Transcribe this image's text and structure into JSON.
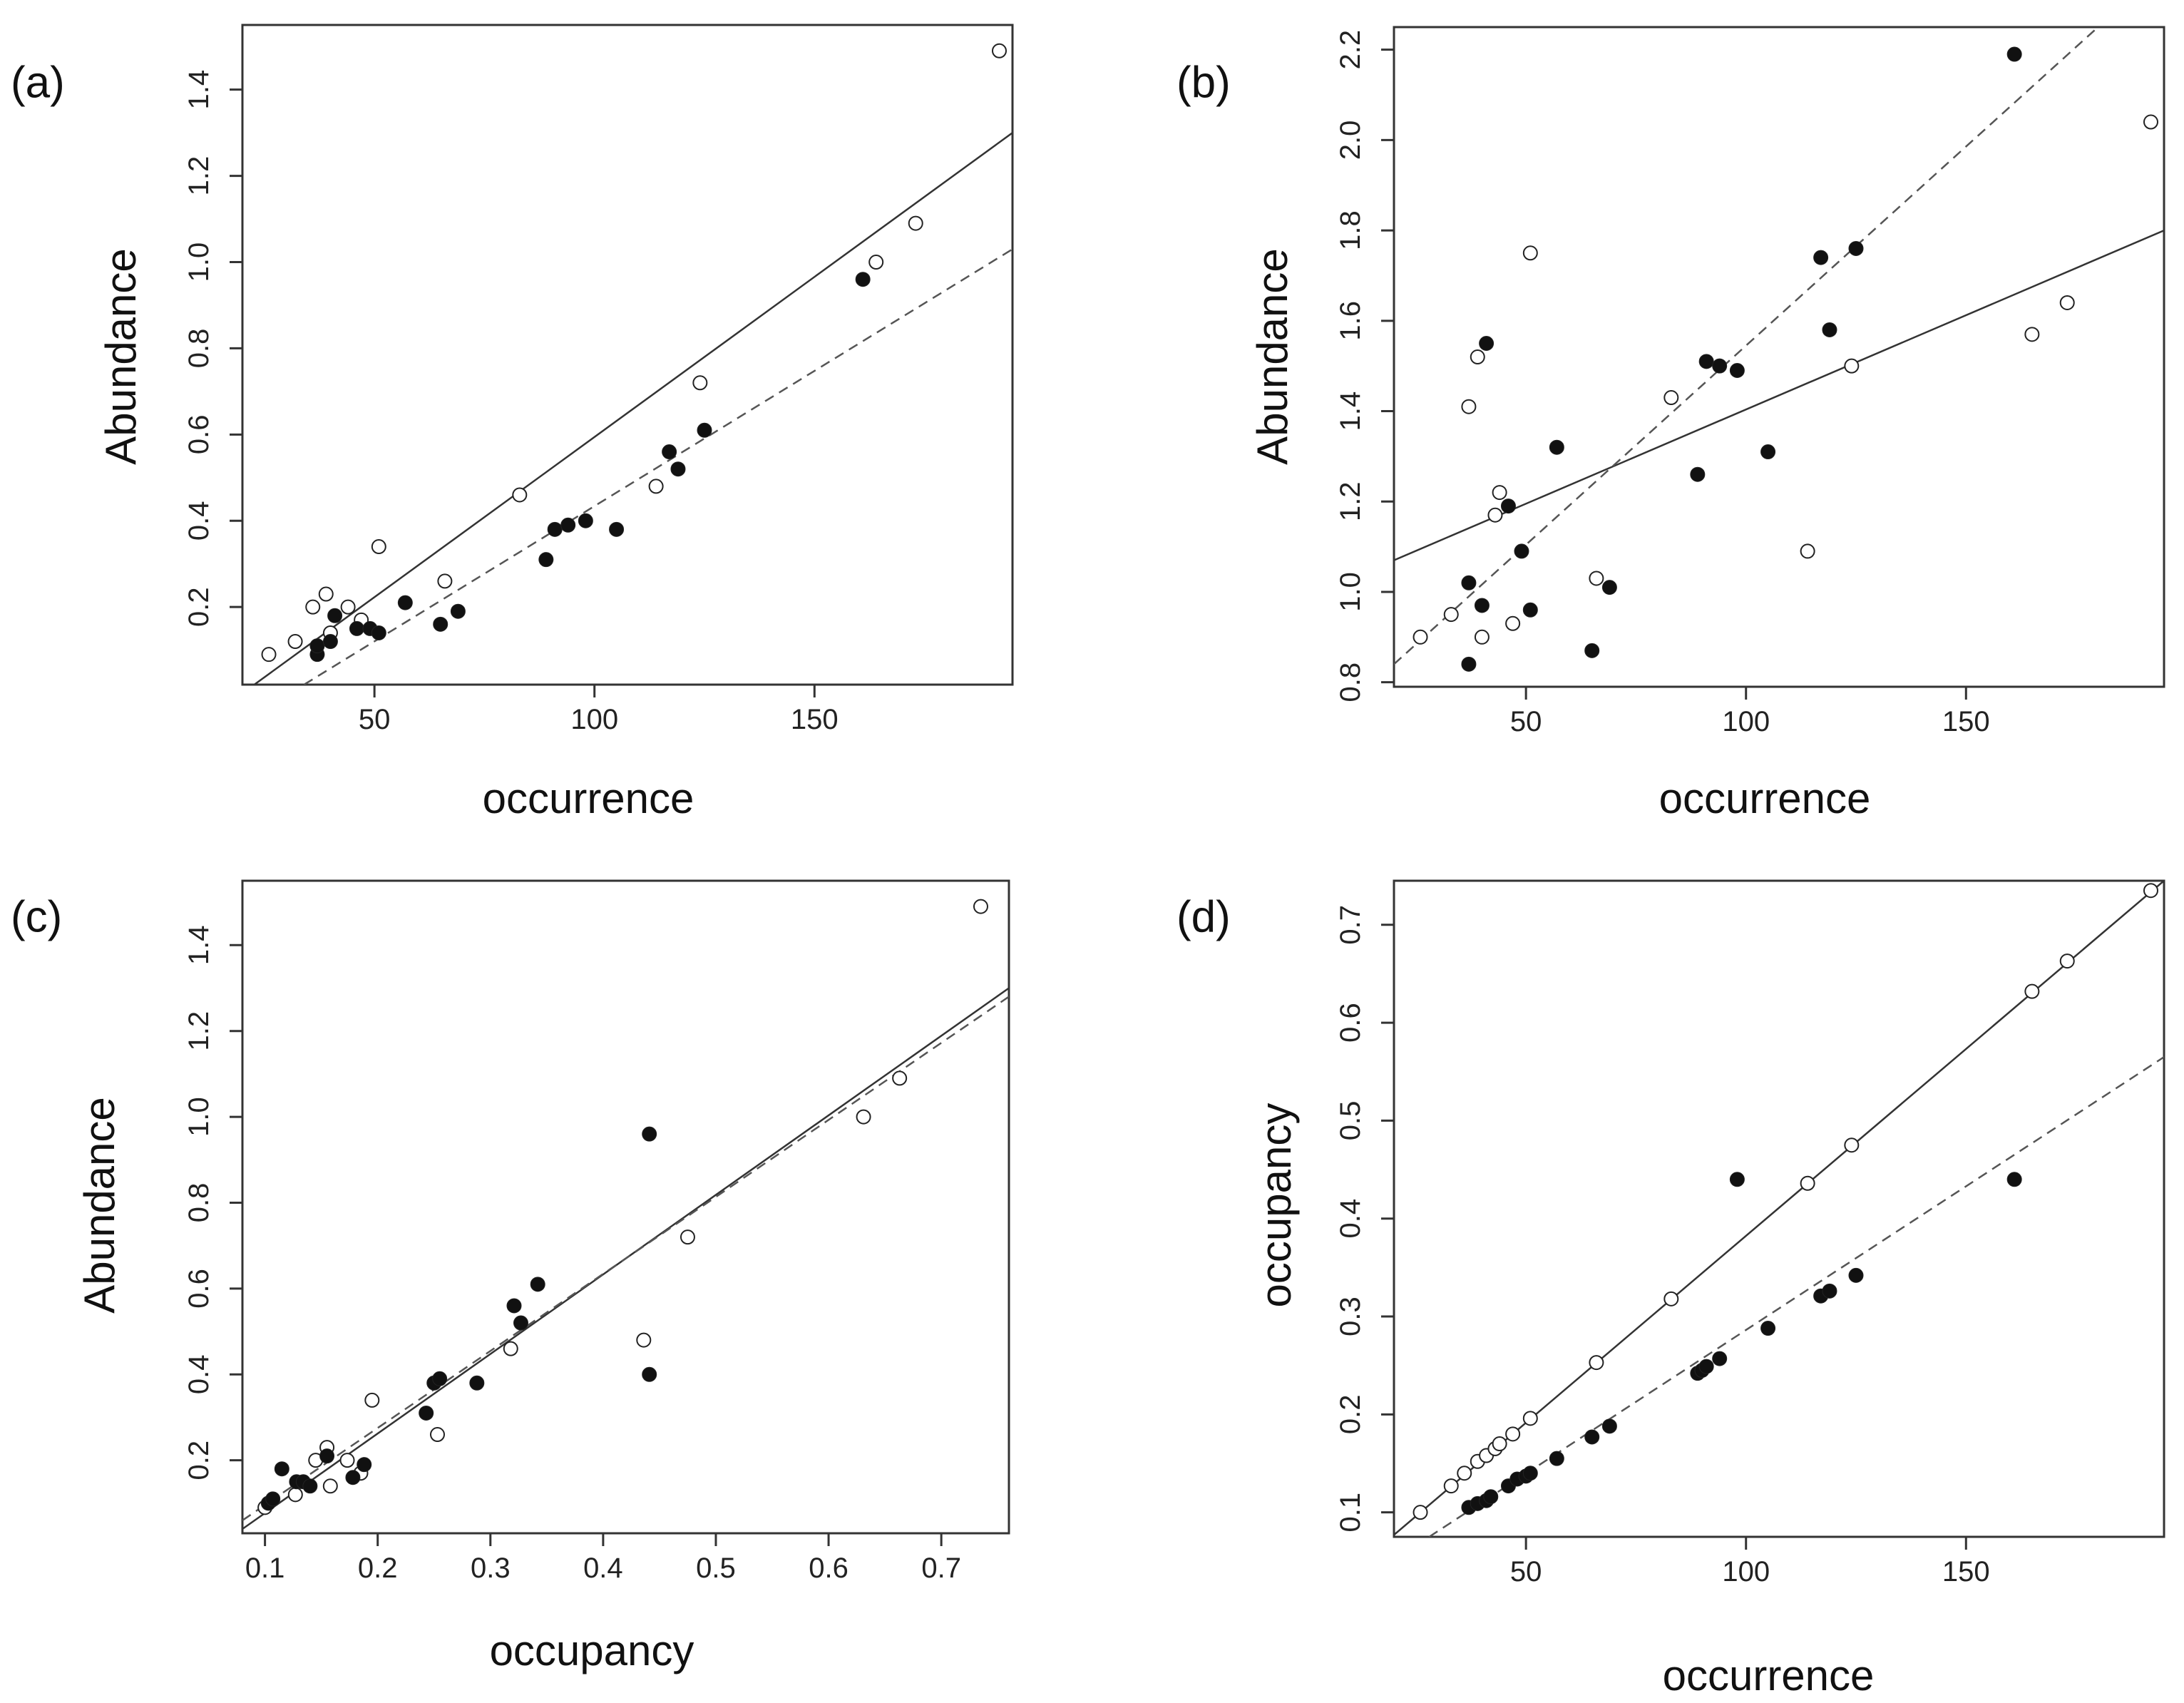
{
  "chart_data": [
    {
      "panel": "(a)",
      "type": "scatter",
      "xlabel": "occurrence",
      "ylabel": "Abundance",
      "xlim": [
        20,
        195
      ],
      "ylim": [
        0.02,
        1.55
      ],
      "xticks": [
        50,
        100,
        150
      ],
      "yticks": [
        0.2,
        0.4,
        0.6,
        0.8,
        1.0,
        1.2,
        1.4
      ],
      "xtick_labels": [
        "50",
        "100",
        "150"
      ],
      "ytick_labels": [
        "0.2",
        "0.4",
        "0.6",
        "0.8",
        "1.0",
        "1.2",
        "1.4"
      ],
      "series": [
        {
          "name": "open",
          "marker": "open-circle",
          "points": [
            [
              26,
              0.09
            ],
            [
              32,
              0.12
            ],
            [
              36,
              0.2
            ],
            [
              39,
              0.23
            ],
            [
              40,
              0.14
            ],
            [
              44,
              0.2
            ],
            [
              47,
              0.17
            ],
            [
              51,
              0.34
            ],
            [
              66,
              0.26
            ],
            [
              83,
              0.46
            ],
            [
              114,
              0.48
            ],
            [
              124,
              0.72
            ],
            [
              164,
              1.0
            ],
            [
              173,
              1.09
            ],
            [
              192,
              1.49
            ]
          ]
        },
        {
          "name": "filled",
          "marker": "filled-circle",
          "points": [
            [
              37,
              0.09
            ],
            [
              37,
              0.11
            ],
            [
              40,
              0.12
            ],
            [
              41,
              0.18
            ],
            [
              46,
              0.15
            ],
            [
              49,
              0.15
            ],
            [
              51,
              0.14
            ],
            [
              57,
              0.21
            ],
            [
              65,
              0.16
            ],
            [
              69,
              0.19
            ],
            [
              89,
              0.31
            ],
            [
              91,
              0.38
            ],
            [
              94,
              0.39
            ],
            [
              98,
              0.4
            ],
            [
              105,
              0.38
            ],
            [
              117,
              0.56
            ],
            [
              119,
              0.52
            ],
            [
              125,
              0.61
            ],
            [
              161,
              0.96
            ]
          ]
        }
      ],
      "lines": [
        {
          "style": "solid",
          "x": [
            20,
            195
          ],
          "y": [
            0.0,
            1.3
          ]
        },
        {
          "style": "dashed",
          "x": [
            34,
            195
          ],
          "y": [
            0.02,
            1.03
          ]
        }
      ]
    },
    {
      "panel": "(b)",
      "type": "scatter",
      "xlabel": "occurrence",
      "ylabel": "Abundance",
      "xlim": [
        20,
        195
      ],
      "ylim": [
        0.79,
        2.25
      ],
      "xticks": [
        50,
        100,
        150
      ],
      "yticks": [
        0.8,
        1.0,
        1.2,
        1.4,
        1.6,
        1.8,
        2.0,
        2.2
      ],
      "xtick_labels": [
        "50",
        "100",
        "150"
      ],
      "ytick_labels": [
        "0.8",
        "1.0",
        "1.2",
        "1.4",
        "1.6",
        "1.8",
        "2.0",
        "2.2"
      ],
      "series": [
        {
          "name": "open",
          "marker": "open-circle",
          "points": [
            [
              26,
              0.9
            ],
            [
              33,
              0.95
            ],
            [
              37,
              1.41
            ],
            [
              39,
              1.52
            ],
            [
              40,
              0.9
            ],
            [
              43,
              1.17
            ],
            [
              44,
              1.22
            ],
            [
              47,
              0.93
            ],
            [
              51,
              1.75
            ],
            [
              66,
              1.03
            ],
            [
              83,
              1.43
            ],
            [
              114,
              1.09
            ],
            [
              124,
              1.5
            ],
            [
              165,
              1.57
            ],
            [
              173,
              1.64
            ],
            [
              192,
              2.04
            ]
          ]
        },
        {
          "name": "filled",
          "marker": "filled-circle",
          "points": [
            [
              37,
              0.84
            ],
            [
              37,
              1.02
            ],
            [
              40,
              0.97
            ],
            [
              41,
              1.55
            ],
            [
              46,
              1.19
            ],
            [
              49,
              1.09
            ],
            [
              51,
              0.96
            ],
            [
              57,
              1.32
            ],
            [
              65,
              0.87
            ],
            [
              69,
              1.01
            ],
            [
              89,
              1.26
            ],
            [
              91,
              1.51
            ],
            [
              94,
              1.5
            ],
            [
              98,
              1.49
            ],
            [
              105,
              1.31
            ],
            [
              117,
              1.74
            ],
            [
              119,
              1.58
            ],
            [
              125,
              1.76
            ],
            [
              161,
              2.19
            ]
          ]
        }
      ],
      "lines": [
        {
          "style": "solid",
          "x": [
            20,
            195
          ],
          "y": [
            1.07,
            1.8
          ]
        },
        {
          "style": "dashed",
          "x": [
            20,
            180
          ],
          "y": [
            0.84,
            2.25
          ]
        }
      ]
    },
    {
      "panel": "(c)",
      "type": "scatter",
      "xlabel": "occupancy",
      "ylabel": "Abundance",
      "xlim": [
        0.08,
        0.76
      ],
      "ylim": [
        0.03,
        1.55
      ],
      "xticks": [
        0.1,
        0.2,
        0.3,
        0.4,
        0.5,
        0.6,
        0.7
      ],
      "yticks": [
        0.2,
        0.4,
        0.6,
        0.8,
        1.0,
        1.2,
        1.4
      ],
      "xtick_labels": [
        "0.1",
        "0.2",
        "0.3",
        "0.4",
        "0.5",
        "0.6",
        "0.7"
      ],
      "ytick_labels": [
        "0.2",
        "0.4",
        "0.6",
        "0.8",
        "1.0",
        "1.2",
        "1.4"
      ],
      "series": [
        {
          "name": "open",
          "marker": "open-circle",
          "points": [
            [
              0.1,
              0.09
            ],
            [
              0.127,
              0.12
            ],
            [
              0.145,
              0.2
            ],
            [
              0.155,
              0.23
            ],
            [
              0.158,
              0.14
            ],
            [
              0.173,
              0.2
            ],
            [
              0.185,
              0.17
            ],
            [
              0.195,
              0.34
            ],
            [
              0.253,
              0.26
            ],
            [
              0.318,
              0.46
            ],
            [
              0.436,
              0.48
            ],
            [
              0.475,
              0.72
            ],
            [
              0.631,
              1.0
            ],
            [
              0.663,
              1.09
            ],
            [
              0.735,
              1.49
            ]
          ]
        },
        {
          "name": "filled",
          "marker": "filled-circle",
          "points": [
            [
              0.103,
              0.1
            ],
            [
              0.107,
              0.11
            ],
            [
              0.115,
              0.18
            ],
            [
              0.128,
              0.15
            ],
            [
              0.134,
              0.15
            ],
            [
              0.14,
              0.14
            ],
            [
              0.155,
              0.21
            ],
            [
              0.178,
              0.16
            ],
            [
              0.188,
              0.19
            ],
            [
              0.243,
              0.31
            ],
            [
              0.25,
              0.38
            ],
            [
              0.255,
              0.39
            ],
            [
              0.288,
              0.38
            ],
            [
              0.321,
              0.56
            ],
            [
              0.327,
              0.52
            ],
            [
              0.342,
              0.61
            ],
            [
              0.441,
              0.96
            ],
            [
              0.441,
              0.4
            ]
          ]
        }
      ],
      "lines": [
        {
          "style": "solid",
          "x": [
            0.08,
            0.76
          ],
          "y": [
            0.04,
            1.3
          ]
        },
        {
          "style": "dashed",
          "x": [
            0.08,
            0.76
          ],
          "y": [
            0.06,
            1.28
          ]
        }
      ]
    },
    {
      "panel": "(d)",
      "type": "scatter",
      "xlabel": "occurrence",
      "ylabel": "occupancy",
      "xlim": [
        20,
        195
      ],
      "ylim": [
        0.075,
        0.745
      ],
      "xticks": [
        50,
        100,
        150
      ],
      "yticks": [
        0.1,
        0.2,
        0.3,
        0.4,
        0.5,
        0.6,
        0.7
      ],
      "xtick_labels": [
        "50",
        "100",
        "150"
      ],
      "ytick_labels": [
        "0.1",
        "0.2",
        "0.3",
        "0.4",
        "0.5",
        "0.6",
        "0.7"
      ],
      "series": [
        {
          "name": "open",
          "marker": "open-circle",
          "points": [
            [
              26,
              0.1
            ],
            [
              33,
              0.127
            ],
            [
              36,
              0.14
            ],
            [
              39,
              0.152
            ],
            [
              41,
              0.158
            ],
            [
              43,
              0.165
            ],
            [
              44,
              0.17
            ],
            [
              47,
              0.18
            ],
            [
              51,
              0.196
            ],
            [
              66,
              0.253
            ],
            [
              83,
              0.318
            ],
            [
              114,
              0.436
            ],
            [
              124,
              0.475
            ],
            [
              165,
              0.632
            ],
            [
              173,
              0.663
            ],
            [
              192,
              0.735
            ]
          ]
        },
        {
          "name": "filled",
          "marker": "filled-circle",
          "points": [
            [
              37,
              0.105
            ],
            [
              39,
              0.109
            ],
            [
              41,
              0.112
            ],
            [
              42,
              0.116
            ],
            [
              46,
              0.127
            ],
            [
              48,
              0.134
            ],
            [
              50,
              0.137
            ],
            [
              51,
              0.14
            ],
            [
              57,
              0.155
            ],
            [
              65,
              0.177
            ],
            [
              69,
              0.188
            ],
            [
              89,
              0.242
            ],
            [
              90,
              0.245
            ],
            [
              91,
              0.249
            ],
            [
              94,
              0.257
            ],
            [
              98,
              0.44
            ],
            [
              105,
              0.288
            ],
            [
              117,
              0.321
            ],
            [
              119,
              0.326
            ],
            [
              125,
              0.342
            ],
            [
              161,
              0.44
            ]
          ]
        }
      ],
      "lines": [
        {
          "style": "solid",
          "x": [
            20,
            195
          ],
          "y": [
            0.077,
            0.745
          ]
        },
        {
          "style": "dashed",
          "x": [
            28,
            195
          ],
          "y": [
            0.075,
            0.565
          ]
        }
      ]
    }
  ]
}
